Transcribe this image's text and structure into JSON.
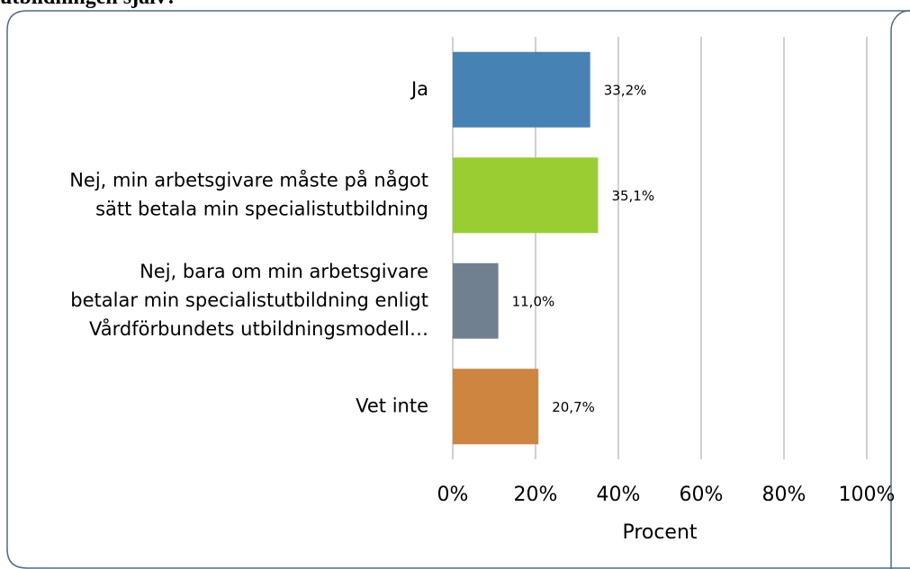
{
  "chart_data": {
    "type": "bar",
    "orientation": "horizontal",
    "title": "utbildningen själv?",
    "categories": [
      [
        "Ja"
      ],
      [
        "Nej, min arbetsgivare måste på något",
        "sätt betala min specialistutbildning"
      ],
      [
        "Nej, bara om min arbetsgivare",
        "betalar min specialistutbildning enligt",
        "Vårdförbundets utbildningsmodell…"
      ],
      [
        "Vet inte"
      ]
    ],
    "values": [
      33.2,
      35.1,
      11.0,
      20.7
    ],
    "value_labels": [
      "33,2%",
      "35,1%",
      "11,0%",
      "20,7%"
    ],
    "colors": [
      "#4682b4",
      "#9acd32",
      "#708090",
      "#cd853f"
    ],
    "xlim": [
      0,
      100
    ],
    "xticks": [
      {
        "value": 0,
        "label": "0%"
      },
      {
        "value": 20,
        "label": "20%"
      },
      {
        "value": 40,
        "label": "40%"
      },
      {
        "value": 60,
        "label": "60%"
      },
      {
        "value": 80,
        "label": "80%"
      },
      {
        "value": 100,
        "label": "100%"
      }
    ],
    "xlabel": "Procent",
    "grid": true
  }
}
